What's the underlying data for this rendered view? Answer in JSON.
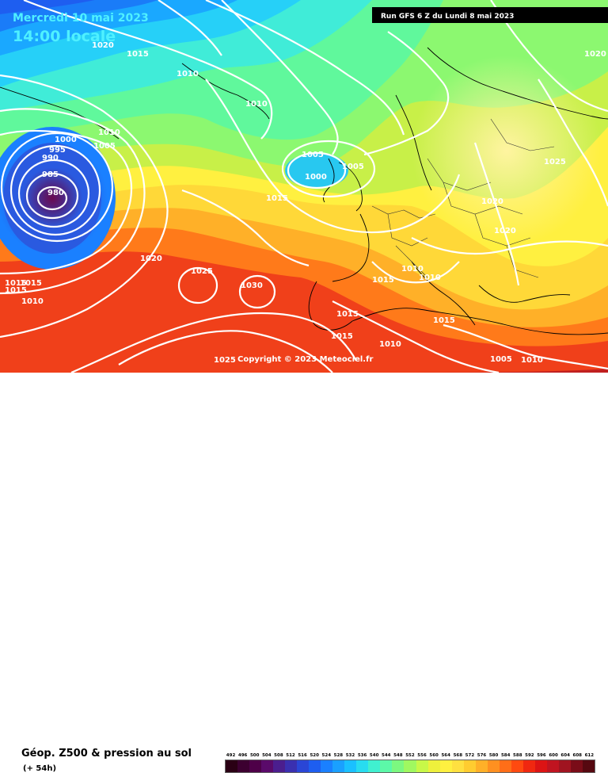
{
  "header": {
    "date": "Mercredi 10 mai 2023",
    "time": "14:00 locale",
    "run": "Run GFS 6 Z du Lundi 8 mai 2023"
  },
  "copyright": "Copyright © 2023 Meteociel.fr",
  "legend": {
    "title": "Géop. Z500 & pression au sol",
    "subtitle": "(+ 54h)",
    "values": [
      "492",
      "496",
      "500",
      "504",
      "508",
      "512",
      "516",
      "520",
      "524",
      "528",
      "532",
      "536",
      "540",
      "544",
      "548",
      "552",
      "556",
      "560",
      "564",
      "568",
      "572",
      "576",
      "580",
      "584",
      "588",
      "592",
      "596",
      "600",
      "604",
      "608",
      "612"
    ],
    "colors": [
      "#2a0014",
      "#3c0030",
      "#4e0048",
      "#5a0a6a",
      "#4b1e8e",
      "#3a30b0",
      "#2a46d6",
      "#1e5ef0",
      "#1a80ff",
      "#1aa0ff",
      "#1ac0ff",
      "#28dcf0",
      "#40f0d0",
      "#5cf8a8",
      "#7cf880",
      "#a0f860",
      "#c8f848",
      "#eef03c",
      "#fff040",
      "#ffe040",
      "#ffcc30",
      "#ffb028",
      "#ff9020",
      "#ff6e18",
      "#ff4a10",
      "#f02810",
      "#dc1414",
      "#c01420",
      "#a01420",
      "#7a0c18",
      "#560810"
    ]
  },
  "isobars": [
    {
      "value": "1020"
    },
    {
      "value": "1015"
    },
    {
      "value": "1010"
    },
    {
      "value": "1010"
    },
    {
      "value": "1010"
    },
    {
      "value": "1005"
    },
    {
      "value": "1000"
    },
    {
      "value": "995"
    },
    {
      "value": "990"
    },
    {
      "value": "985"
    },
    {
      "value": "980"
    },
    {
      "value": "1005"
    },
    {
      "value": "1000"
    },
    {
      "value": "1005"
    },
    {
      "value": "1015"
    },
    {
      "value": "1020"
    },
    {
      "value": "1025"
    },
    {
      "value": "1030"
    },
    {
      "value": "1015"
    },
    {
      "value": "1015"
    },
    {
      "value": "1015"
    },
    {
      "value": "1010"
    },
    {
      "value": "1025"
    },
    {
      "value": "1020"
    },
    {
      "value": "1020"
    },
    {
      "value": "1020"
    },
    {
      "value": "1015"
    },
    {
      "value": "1010"
    },
    {
      "value": "1010"
    },
    {
      "value": "1015"
    },
    {
      "value": "1015"
    },
    {
      "value": "1015"
    },
    {
      "value": "1010"
    },
    {
      "value": "1005"
    },
    {
      "value": "1010"
    },
    {
      "value": "1025"
    },
    {
      "value": "1020"
    }
  ],
  "pressure_centers": {
    "low_north_atlantic": "980",
    "low_ireland": "1000",
    "high_azores": "1030"
  }
}
